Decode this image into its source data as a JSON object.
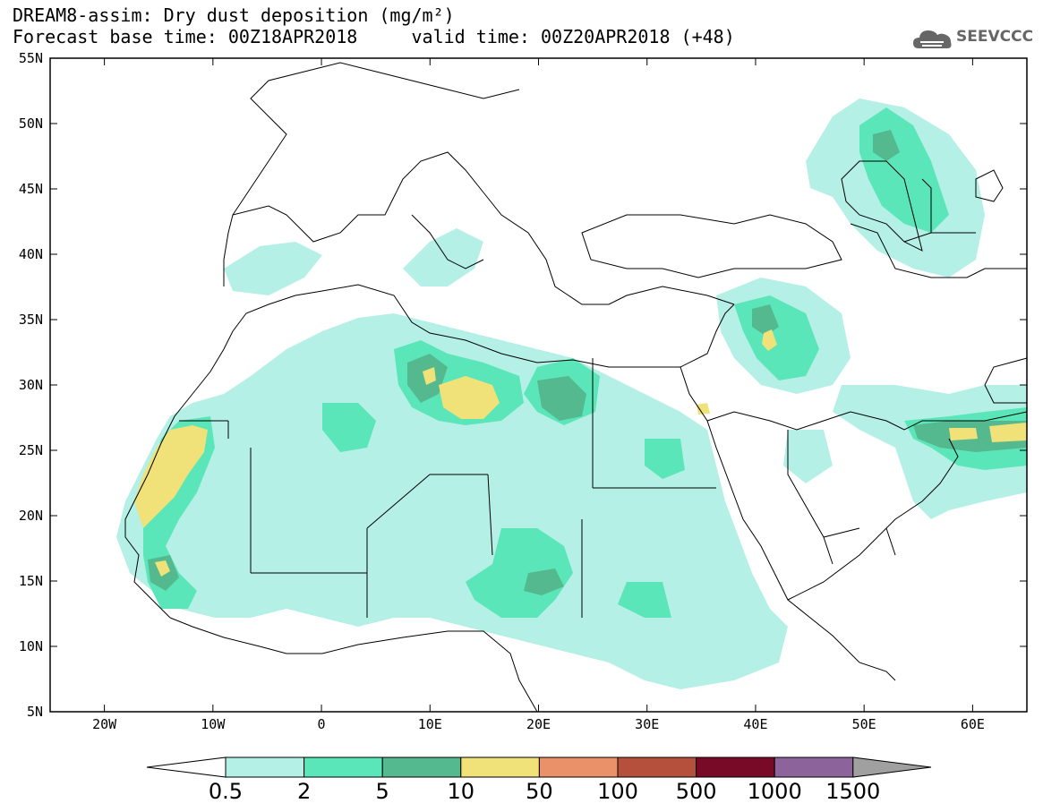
{
  "header": {
    "title_line1": "DREAM8-assim: Dry dust deposition (mg/m²)",
    "title_line2": "Forecast base time: 00Z18APR2018     valid time: 00Z20APR2018 (+48)",
    "logo_text": "SEEVCCC"
  },
  "map": {
    "lat_labels": [
      "55N",
      "50N",
      "45N",
      "40N",
      "35N",
      "30N",
      "25N",
      "20N",
      "15N",
      "10N",
      "5N"
    ],
    "lon_labels": [
      "20W",
      "10W",
      "0",
      "10E",
      "20E",
      "30E",
      "40E",
      "50E",
      "60E"
    ],
    "lon_range": [
      -25,
      65
    ],
    "lat_range": [
      5,
      55
    ]
  },
  "colorbar": {
    "levels": [
      "0.5",
      "2",
      "5",
      "10",
      "50",
      "100",
      "500",
      "1000",
      "1500"
    ],
    "colors": [
      "#b4f0e6",
      "#5ae6b9",
      "#55b98f",
      "#f0e178",
      "#eb9169",
      "#b4503c",
      "#780a28",
      "#8c649b"
    ],
    "under_color": "#ffffff",
    "over_color": "#a0a0a0"
  }
}
